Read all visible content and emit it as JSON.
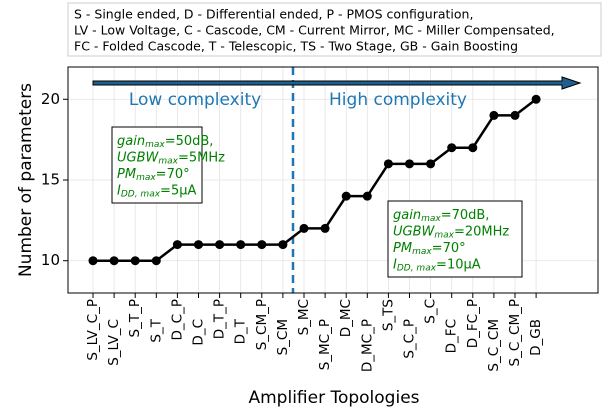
{
  "chart_data": {
    "type": "line",
    "note": [
      "S - Single ended, D - Differential ended, P - PMOS configuration,",
      "LV - Low Voltage, C - Cascode, CM - Current Mirror, MC - Miller Compensated,",
      "FC - Folded Cascode, T - Telescopic, TS - Two Stage, GB - Gain Boosting"
    ],
    "xlabel": "Amplifier Topologies",
    "ylabel": "Number of parameters",
    "categories": [
      "S_LV_C_P",
      "S_LV_C",
      "S_T_P",
      "S_T",
      "D_C_P",
      "D_C",
      "D_T_P",
      "D_T",
      "S_CM_P",
      "S_CM",
      "S_MC",
      "S_MC_P",
      "D_MC",
      "D_MC_P",
      "S_TS",
      "S_C_P",
      "S_C",
      "D_FC",
      "D_FC_P",
      "S_C_CM",
      "S_C_CM_P",
      "D_GB"
    ],
    "values": [
      10,
      10,
      10,
      10,
      11,
      11,
      11,
      11,
      11,
      11,
      12,
      12,
      14,
      14,
      16,
      16,
      16,
      17,
      17,
      19,
      19,
      20
    ],
    "color": "#000000",
    "ylim": [
      8,
      22
    ],
    "yticks": [
      10,
      15,
      20
    ],
    "grid": true,
    "annotations": [
      "Low complexity",
      "High complexity"
    ],
    "boxes": [
      [
        [
          {
            "t": "gain"
          },
          {
            "sub": "max"
          },
          {
            "t": "=50dB,"
          }
        ],
        [
          {
            "t": "UGBW"
          },
          {
            "sub": "max"
          },
          {
            "t": "=5MHz"
          }
        ],
        [
          {
            "t": "PM"
          },
          {
            "sub": "max"
          },
          {
            "t": "=70°"
          }
        ],
        [
          {
            "t": "I"
          },
          {
            "sub": "DD, max"
          },
          {
            "t": "=5μA"
          }
        ]
      ],
      [
        [
          {
            "t": "gain"
          },
          {
            "sub": "max"
          },
          {
            "t": "=70dB,"
          }
        ],
        [
          {
            "t": "UGBW"
          },
          {
            "sub": "max"
          },
          {
            "t": "=20MHz"
          }
        ],
        [
          {
            "t": "PM"
          },
          {
            "sub": "max"
          },
          {
            "t": "=70°"
          }
        ],
        [
          {
            "t": "I"
          },
          {
            "sub": "DD, max"
          },
          {
            "t": "=10μA"
          }
        ]
      ]
    ]
  }
}
